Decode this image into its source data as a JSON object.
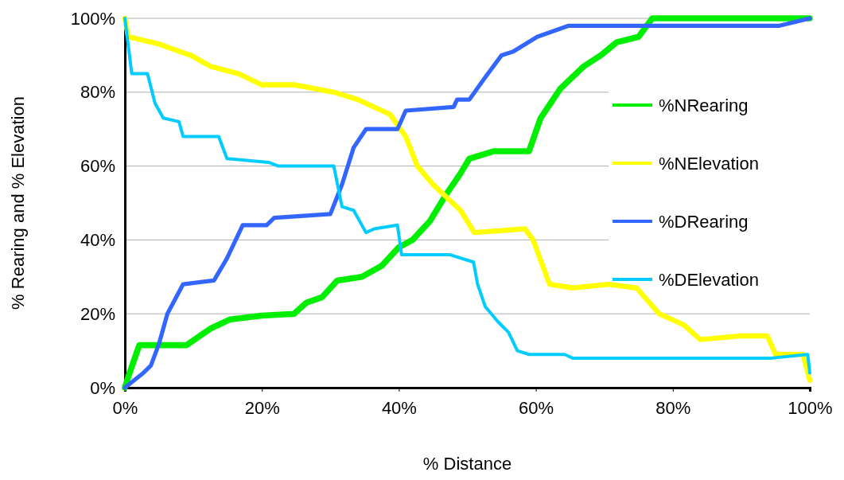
{
  "chart_data": {
    "type": "line",
    "xlabel": "% Distance",
    "ylabel": "% Rearing and % Elevation",
    "xlim": [
      0,
      100
    ],
    "ylim": [
      0,
      100
    ],
    "xticks": [
      {
        "value": 0,
        "label": "0%"
      },
      {
        "value": 20,
        "label": "20%"
      },
      {
        "value": 40,
        "label": "40%"
      },
      {
        "value": 60,
        "label": "60%"
      },
      {
        "value": 80,
        "label": "80%"
      },
      {
        "value": 100,
        "label": "100%"
      }
    ],
    "yticks": [
      {
        "value": 0,
        "label": "0%"
      },
      {
        "value": 20,
        "label": "20%"
      },
      {
        "value": 40,
        "label": "40%"
      },
      {
        "value": 60,
        "label": "60%"
      },
      {
        "value": 80,
        "label": "80%"
      },
      {
        "value": 100,
        "label": "100%"
      }
    ],
    "grid": "y",
    "legend": "right",
    "marker": "none",
    "line_style": "solid",
    "series": [
      {
        "name": "%NRearing",
        "color": "#00ee00",
        "x": [
          0,
          0.5,
          2.1,
          9,
          12.5,
          15.4,
          20,
          24.7,
          26.5,
          28.8,
          31,
          34.6,
          37.5,
          40,
          42,
          44.5,
          46.8,
          49,
          50.3,
          53.8,
          59,
          60.7,
          63.6,
          67,
          69.5,
          71.8,
          75,
          77,
          100
        ],
        "values": [
          0,
          3,
          11.5,
          11.5,
          16,
          18.5,
          19.5,
          20,
          23,
          24.5,
          29,
          30,
          33,
          38,
          40,
          45,
          52,
          58,
          62,
          64,
          64,
          73,
          81,
          87,
          90,
          93.5,
          95,
          100,
          100
        ]
      },
      {
        "name": "%NElevation",
        "color": "#ffff00",
        "x": [
          0,
          0.5,
          5,
          9.6,
          12.5,
          16.6,
          20,
          24.7,
          30.5,
          34,
          38.7,
          41,
          42.7,
          45,
          49,
          51,
          58.4,
          59.6,
          62,
          65.4,
          70.6,
          74.7,
          78,
          81.6,
          84,
          89.8,
          93.8,
          95,
          99,
          100
        ],
        "values": [
          100,
          95,
          93,
          90,
          87,
          85,
          82,
          82,
          80,
          78,
          74,
          68,
          60,
          55,
          48,
          42,
          43,
          40,
          28,
          27,
          28,
          27,
          20,
          17,
          13,
          14,
          14,
          9,
          9,
          2
        ]
      },
      {
        "name": "%DRearing",
        "color": "#3366ff",
        "x": [
          0,
          2.7,
          3.8,
          5,
          6.2,
          8.5,
          13,
          14.9,
          17.2,
          20.7,
          21.8,
          30,
          31.7,
          33.4,
          35.2,
          39.8,
          41,
          48,
          48.5,
          50.3,
          52.6,
          55,
          56.7,
          60.2,
          64.8,
          95.6,
          100
        ],
        "values": [
          0,
          4,
          6,
          12,
          20,
          28,
          29,
          35,
          44,
          44,
          46,
          47,
          55,
          65,
          70,
          70,
          75,
          76,
          78,
          78,
          84,
          90,
          91,
          95,
          98,
          98,
          100
        ]
      },
      {
        "name": "%DElevation",
        "color": "#00ccff",
        "x": [
          0,
          1,
          3.3,
          4.4,
          5.6,
          7.9,
          8.5,
          13.7,
          14.9,
          21,
          22.4,
          30.5,
          31.7,
          33.4,
          35.2,
          36.4,
          39.8,
          40.4,
          47.4,
          50.9,
          51.5,
          52.6,
          54.4,
          56,
          57.3,
          59,
          64.2,
          65.4,
          94.4,
          99.7,
          100
        ],
        "values": [
          100,
          85,
          85,
          77,
          73,
          72,
          68,
          68,
          62,
          61,
          60,
          60,
          49,
          48,
          42,
          43,
          44,
          36,
          36,
          34,
          28,
          22,
          18,
          15,
          10,
          9,
          9,
          8,
          8,
          9,
          4
        ]
      }
    ]
  }
}
